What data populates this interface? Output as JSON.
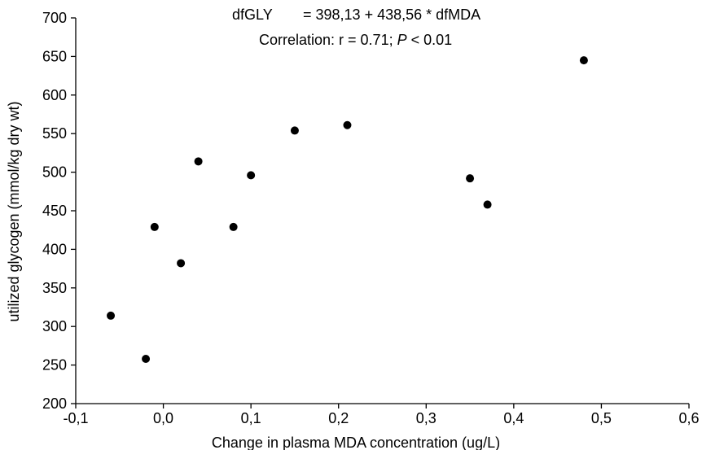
{
  "chart_data": {
    "type": "scatter",
    "title": "",
    "xlabel": "Change in plasma MDA concentration (ug/L)",
    "ylabel": "utilized glycogen (mmol/kg dry wt)",
    "xlim": [
      -0.1,
      0.6
    ],
    "ylim": [
      200,
      700
    ],
    "x_ticks": [
      "-0,1",
      "0,0",
      "0,1",
      "0,2",
      "0,3",
      "0,4",
      "0,5",
      "0,6"
    ],
    "y_ticks": [
      "200",
      "250",
      "300",
      "350",
      "400",
      "450",
      "500",
      "550",
      "600",
      "650",
      "700"
    ],
    "grid": false,
    "legend": "none",
    "annotations": {
      "equation": {
        "lhs": "dfGLY",
        "rhs": "= 398,13 + 438,56 * dfMDA"
      },
      "correlation": {
        "prefix": "Correlation: r = 0.71;",
        "p_symbol": "P",
        "suffix": "< 0.01"
      }
    },
    "series": [
      {
        "color": "#000000",
        "points": [
          {
            "x": -0.06,
            "y": 314
          },
          {
            "x": -0.02,
            "y": 258
          },
          {
            "x": -0.01,
            "y": 429
          },
          {
            "x": 0.02,
            "y": 382
          },
          {
            "x": 0.04,
            "y": 514
          },
          {
            "x": 0.08,
            "y": 429
          },
          {
            "x": 0.1,
            "y": 496
          },
          {
            "x": 0.15,
            "y": 554
          },
          {
            "x": 0.21,
            "y": 561
          },
          {
            "x": 0.35,
            "y": 492
          },
          {
            "x": 0.37,
            "y": 458
          },
          {
            "x": 0.48,
            "y": 645
          }
        ]
      }
    ]
  }
}
